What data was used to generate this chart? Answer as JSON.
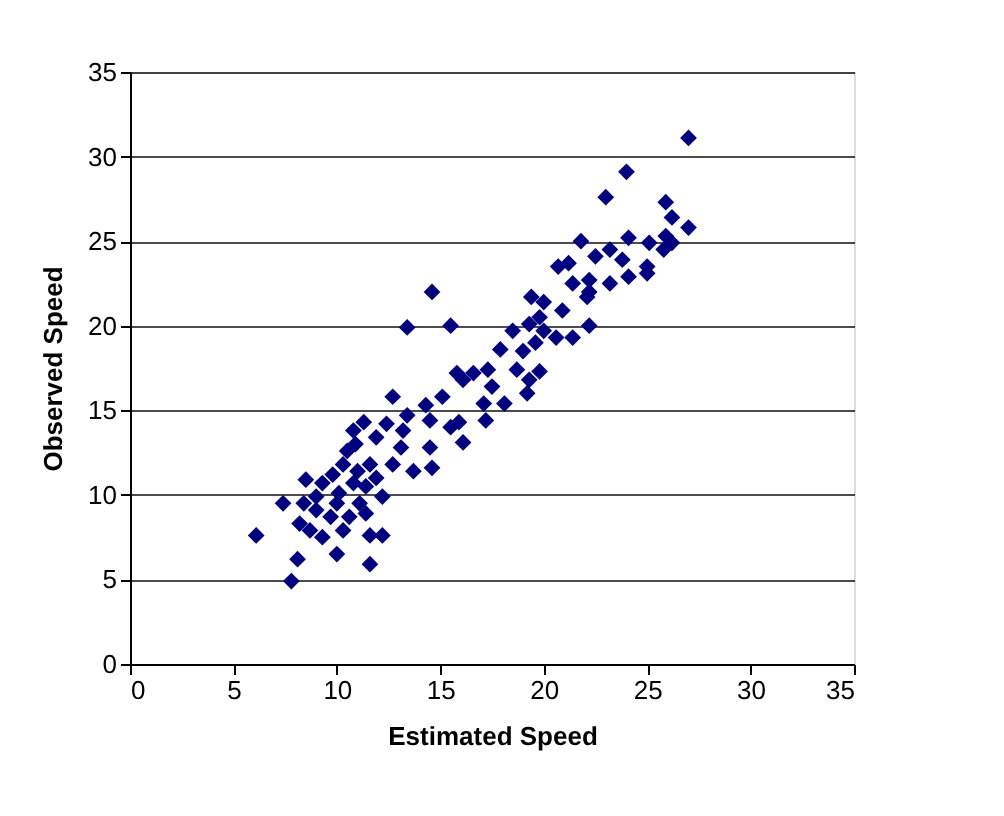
{
  "chart_data": {
    "type": "scatter",
    "xlabel": "Estimated Speed",
    "ylabel": "Observed Speed",
    "xlim": [
      0,
      35
    ],
    "ylim": [
      0,
      35
    ],
    "xticks": [
      0,
      5,
      10,
      15,
      20,
      25,
      30,
      35
    ],
    "yticks": [
      0,
      5,
      10,
      15,
      20,
      25,
      30,
      35
    ],
    "grid": "y",
    "marker": "diamond",
    "series": [
      {
        "color": "#000080",
        "x": [
          27.0,
          24.0,
          23.0,
          25.9,
          26.2,
          27.0,
          24.1,
          21.8,
          25.1,
          25.9,
          26.2,
          25.8,
          23.2,
          22.5,
          23.8,
          21.2,
          20.7,
          25.0,
          25.0,
          24.1,
          23.2,
          22.2,
          21.4,
          22.1,
          22.2,
          19.4,
          20.0,
          20.9,
          19.8,
          19.3,
          22.2,
          20.0,
          20.6,
          21.4,
          18.5,
          19.6,
          19.0,
          17.9,
          18.7,
          19.8,
          19.3,
          19.2,
          17.3,
          16.6,
          15.8,
          16.1,
          17.5,
          17.1,
          18.1,
          17.2,
          13.4,
          14.6,
          15.5,
          15.1,
          14.3,
          12.7,
          13.4,
          14.5,
          15.5,
          15.9,
          16.1,
          13.2,
          13.1,
          14.5,
          12.4,
          11.3,
          10.8,
          11.9,
          10.9,
          10.5,
          12.7,
          13.7,
          14.6,
          10.3,
          11.6,
          9.8,
          11.9,
          8.5,
          9.3,
          10.8,
          11.4,
          12.2,
          7.4,
          8.4,
          10.0,
          11.1,
          9.0,
          9.7,
          10.6,
          11.4,
          8.2,
          8.7,
          9.3,
          10.3,
          6.1,
          11.6,
          12.2,
          10.0,
          8.1,
          11.6,
          7.8,
          10.1,
          11.0,
          9.0
        ],
        "values": [
          31.1,
          29.1,
          27.6,
          27.3,
          26.4,
          25.8,
          25.2,
          25.0,
          24.9,
          25.3,
          24.9,
          24.5,
          24.5,
          24.1,
          23.9,
          23.7,
          23.5,
          23.5,
          23.1,
          22.9,
          22.5,
          22.7,
          22.5,
          21.7,
          22.0,
          21.7,
          21.4,
          20.9,
          20.5,
          20.1,
          20.0,
          19.7,
          19.3,
          19.3,
          19.7,
          19.0,
          18.5,
          18.6,
          17.4,
          17.3,
          16.8,
          16.0,
          17.4,
          17.2,
          17.2,
          16.8,
          16.4,
          15.4,
          15.4,
          14.4,
          19.9,
          22.0,
          20.0,
          15.8,
          15.3,
          15.8,
          14.7,
          14.4,
          14.0,
          14.3,
          13.1,
          13.8,
          12.8,
          12.8,
          14.2,
          14.3,
          13.8,
          13.4,
          13.0,
          12.6,
          11.8,
          11.4,
          11.6,
          11.8,
          11.8,
          11.2,
          11.0,
          10.9,
          10.7,
          10.7,
          10.5,
          9.9,
          9.5,
          9.5,
          9.5,
          9.5,
          9.1,
          8.7,
          8.7,
          8.9,
          8.3,
          7.9,
          7.5,
          7.9,
          7.6,
          7.6,
          7.6,
          6.5,
          6.2,
          5.9,
          4.9,
          10.1,
          11.4,
          9.9
        ]
      }
    ]
  }
}
